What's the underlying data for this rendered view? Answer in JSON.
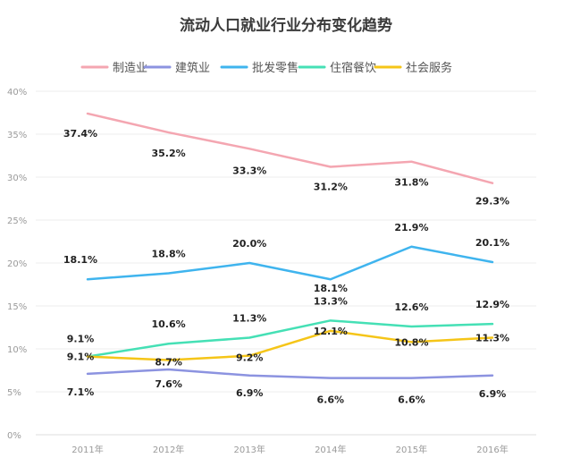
{
  "chart_data": {
    "type": "line",
    "title": "流动人口就业行业分布变化趋势",
    "categories": [
      "2011年",
      "2012年",
      "2013年",
      "2014年",
      "2015年",
      "2016年"
    ],
    "y_ticks": [
      "0%",
      "5%",
      "10%",
      "15%",
      "20%",
      "25%",
      "30%",
      "35%",
      "40%"
    ],
    "ylim": [
      0,
      40
    ],
    "grid": "horizontal",
    "legend_position": "top",
    "series": [
      {
        "name": "制造业",
        "color": "#f4a6b1",
        "values": [
          37.4,
          35.2,
          33.3,
          31.2,
          31.8,
          29.3
        ],
        "labels": [
          "37.4%",
          "35.2%",
          "33.3%",
          "31.2%",
          "31.8%",
          "29.3%"
        ]
      },
      {
        "name": "建筑业",
        "color": "#8c93e0",
        "values": [
          7.1,
          7.6,
          6.9,
          6.6,
          6.6,
          6.9
        ],
        "labels": [
          "7.1%",
          "7.6%",
          "6.9%",
          "6.6%",
          "6.6%",
          "6.9%"
        ]
      },
      {
        "name": "批发零售",
        "color": "#3fb4ee",
        "values": [
          18.1,
          18.8,
          20.0,
          18.1,
          21.9,
          20.1
        ],
        "labels": [
          "18.1%",
          "18.8%",
          "20.0%",
          "18.1%",
          "21.9%",
          "20.1%"
        ]
      },
      {
        "name": "住宿餐饮",
        "color": "#45e0b5",
        "values": [
          9.1,
          10.6,
          11.3,
          13.3,
          12.6,
          12.9
        ],
        "labels": [
          "9.1%",
          "10.6%",
          "11.3%",
          "13.3%",
          "12.6%",
          "12.9%"
        ]
      },
      {
        "name": "社会服务",
        "color": "#f5c518",
        "values": [
          9.1,
          8.7,
          9.2,
          12.1,
          10.8,
          11.3
        ],
        "labels": [
          "9.1%",
          "8.7%",
          "9.2%",
          "12.1%",
          "10.8%",
          "11.3%"
        ]
      }
    ]
  }
}
